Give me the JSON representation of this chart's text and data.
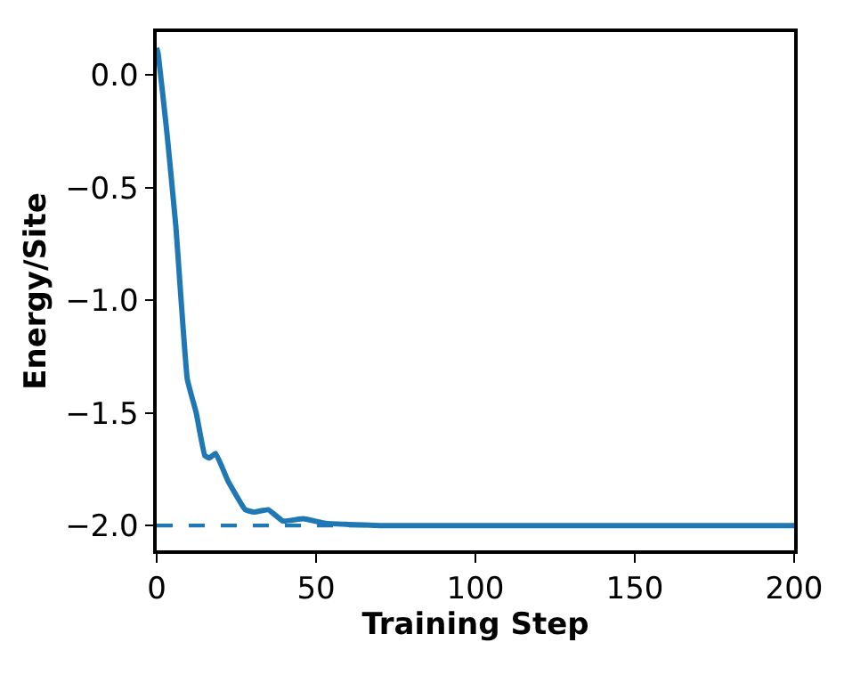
{
  "chart_data": {
    "type": "line",
    "xlabel": "Training Step",
    "ylabel": "Energy/Site",
    "x": [
      0,
      0.5,
      3.3,
      6,
      9.6,
      12.4,
      15.1,
      16.5,
      18.5,
      22.3,
      27.8,
      30.5,
      35,
      39.6,
      46,
      53,
      60,
      70,
      100,
      150,
      200
    ],
    "series": [
      {
        "color": "#1f77b4",
        "values": [
          0.12,
          0.09,
          -0.27,
          -0.67,
          -1.35,
          -1.5,
          -1.69,
          -1.7,
          -1.68,
          -1.8,
          -1.93,
          -1.94,
          -1.93,
          -1.98,
          -1.97,
          -1.99,
          -1.995,
          -2.0,
          -2.0,
          -2.0,
          -2.0
        ]
      }
    ],
    "ref_lines": [
      {
        "axis": "y",
        "value": -2.0,
        "color": "#1f77b4",
        "line_style": "dashed"
      }
    ],
    "xlim": [
      0,
      200
    ],
    "xticks": [
      0,
      50,
      100,
      150,
      200
    ],
    "ylim": [
      -2.11,
      0.19
    ],
    "yticks": [
      {
        "value": 0,
        "label": "0.0"
      },
      {
        "value": -0.5,
        "label": "−0.5"
      },
      {
        "value": -1,
        "label": "−1.0"
      },
      {
        "value": -1.5,
        "label": "−1.5"
      },
      {
        "value": -2,
        "label": "−2.0"
      }
    ],
    "grid": false
  }
}
